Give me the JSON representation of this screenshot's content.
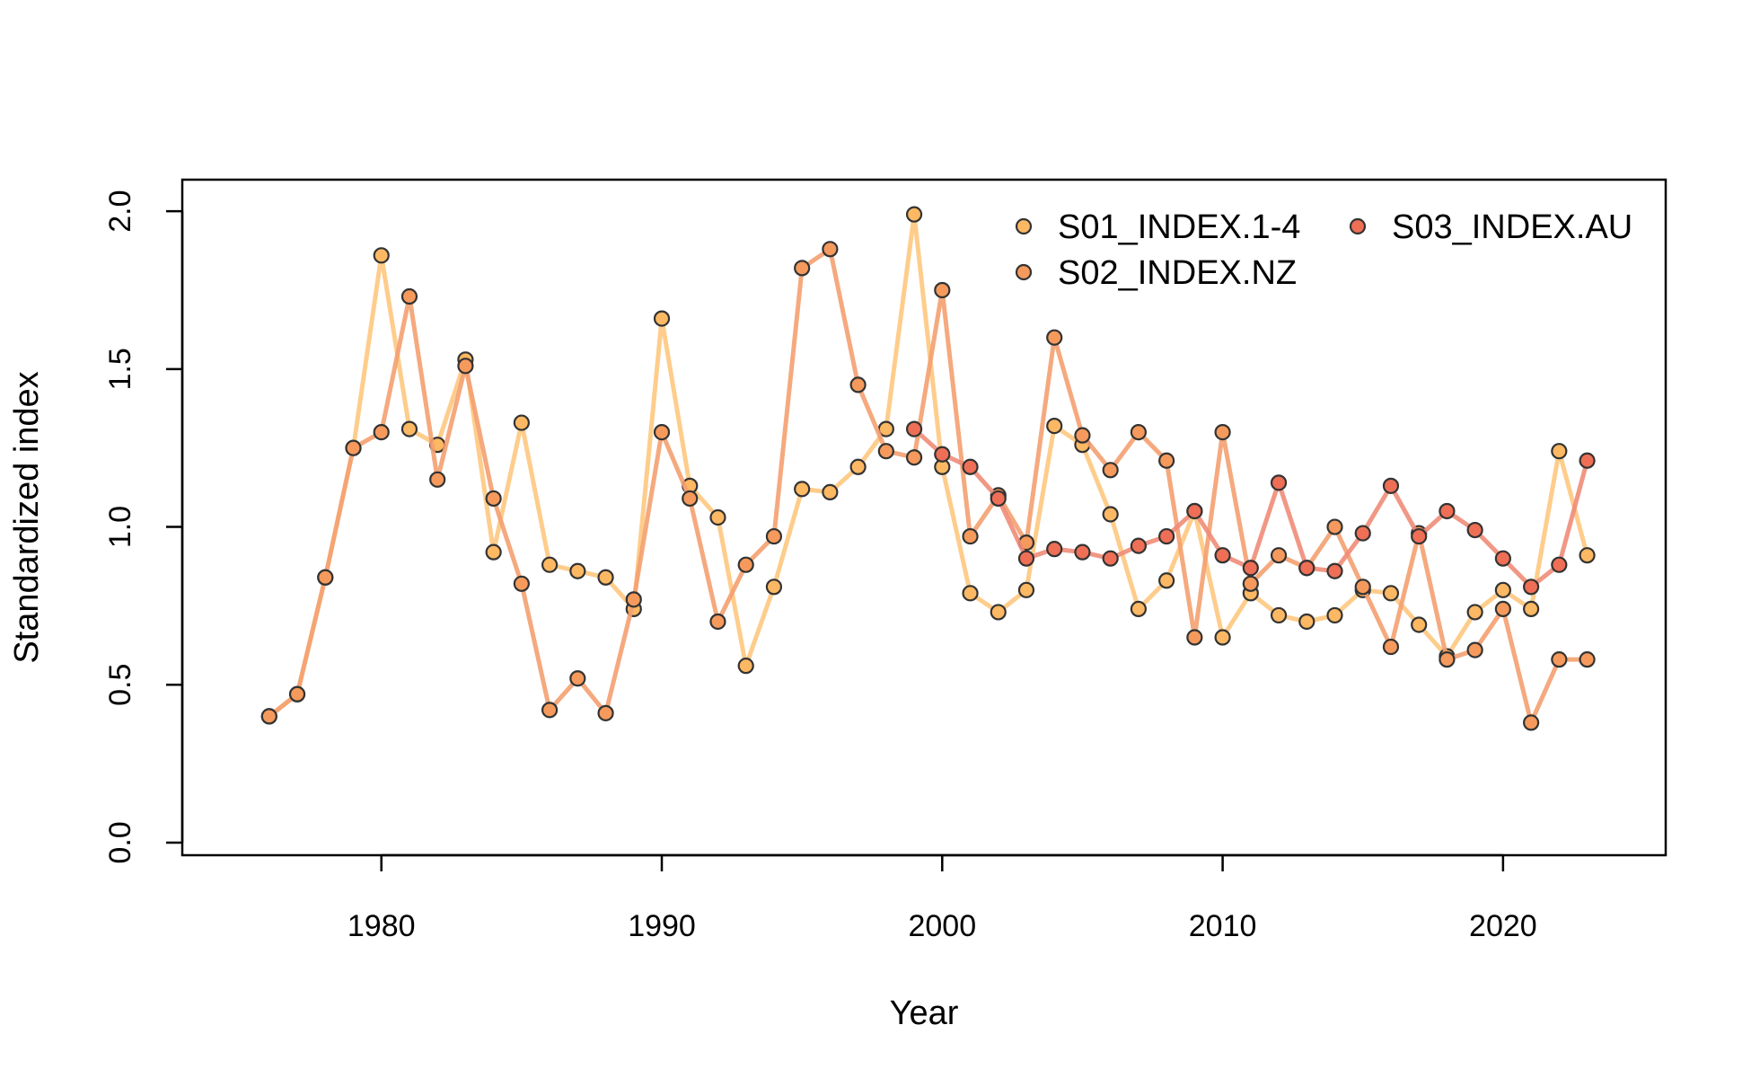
{
  "chart_data": {
    "type": "line",
    "title": "",
    "xlabel": "Year",
    "ylabel": "Standardized index",
    "xlim": [
      1972.1,
      1925.9
    ],
    "xlim_note": "",
    "ylim": [
      0,
      2.0
    ],
    "xticks": [
      1980,
      1990,
      2000,
      2010,
      2020
    ],
    "yticks": [
      0.0,
      0.5,
      1.0,
      1.5,
      2.0
    ],
    "ytick_labels": [
      "0.0",
      "0.5",
      "1.0",
      "1.5",
      "2.0"
    ],
    "grid": false,
    "legend_position": "top-right",
    "series": [
      {
        "name": "S01_INDEX.1-4",
        "color": "#FDB863",
        "line_color": "#FEC880",
        "x": [
          1976,
          1977,
          1978,
          1979,
          1980,
          1981,
          1982,
          1983,
          1984,
          1985,
          1986,
          1987,
          1988,
          1989,
          1990,
          1991,
          1992,
          1993,
          1994,
          1995,
          1996,
          1997,
          1998,
          1999,
          2000,
          2001,
          2002,
          2003,
          2004,
          2005,
          2006,
          2007,
          2008,
          2009,
          2010,
          2011,
          2012,
          2013,
          2014,
          2015,
          2016,
          2017,
          2018,
          2019,
          2020,
          2021,
          2022,
          2023
        ],
        "y": [
          0.4,
          0.47,
          0.84,
          1.25,
          1.86,
          1.31,
          1.26,
          1.53,
          0.92,
          1.33,
          0.88,
          0.86,
          0.84,
          0.74,
          1.66,
          1.13,
          1.03,
          0.56,
          0.81,
          1.12,
          1.11,
          1.19,
          1.31,
          1.99,
          1.19,
          0.79,
          0.73,
          0.8,
          1.32,
          1.26,
          1.04,
          0.74,
          0.83,
          1.05,
          0.65,
          0.79,
          0.72,
          0.7,
          0.72,
          0.8,
          0.79,
          0.69,
          0.59,
          0.73,
          0.8,
          0.74,
          1.24,
          0.91
        ]
      },
      {
        "name": "S02_INDEX.NZ",
        "color": "#F59A5C",
        "line_color": "#F4A070",
        "x": [
          1976,
          1977,
          1978,
          1979,
          1980,
          1981,
          1982,
          1983,
          1984,
          1985,
          1986,
          1987,
          1988,
          1989,
          1990,
          1991,
          1992,
          1993,
          1994,
          1995,
          1996,
          1997,
          1998,
          1999,
          2000,
          2001,
          2002,
          2003,
          2004,
          2005,
          2006,
          2007,
          2008,
          2009,
          2010,
          2011,
          2012,
          2013,
          2014,
          2015,
          2016,
          2017,
          2018,
          2019,
          2020,
          2021,
          2022,
          2023
        ],
        "y": [
          0.4,
          0.47,
          0.84,
          1.25,
          1.3,
          1.73,
          1.15,
          1.51,
          1.09,
          0.82,
          0.42,
          0.52,
          0.41,
          0.77,
          1.3,
          1.09,
          0.7,
          0.88,
          0.97,
          1.82,
          1.88,
          1.45,
          1.24,
          1.22,
          1.75,
          0.97,
          1.1,
          0.95,
          1.6,
          1.29,
          1.18,
          1.3,
          1.21,
          0.65,
          1.3,
          0.82,
          0.91,
          0.87,
          1.0,
          0.81,
          0.62,
          0.98,
          0.58,
          0.61,
          0.74,
          0.38,
          0.58,
          0.58
        ]
      },
      {
        "name": "S03_INDEX.AU",
        "color": "#EE6F55",
        "line_color": "#F08C78",
        "x": [
          1999,
          2000,
          2001,
          2002,
          2003,
          2004,
          2005,
          2006,
          2007,
          2008,
          2009,
          2010,
          2011,
          2012,
          2013,
          2014,
          2015,
          2016,
          2017,
          2018,
          2019,
          2020,
          2021,
          2022,
          2023
        ],
        "y": [
          1.31,
          1.23,
          1.19,
          1.09,
          0.9,
          0.93,
          0.92,
          0.9,
          0.94,
          0.97,
          1.05,
          0.91,
          0.87,
          1.14,
          0.87,
          0.86,
          0.98,
          1.13,
          0.97,
          1.05,
          0.99,
          0.9,
          0.81,
          0.88,
          1.21
        ]
      }
    ]
  }
}
